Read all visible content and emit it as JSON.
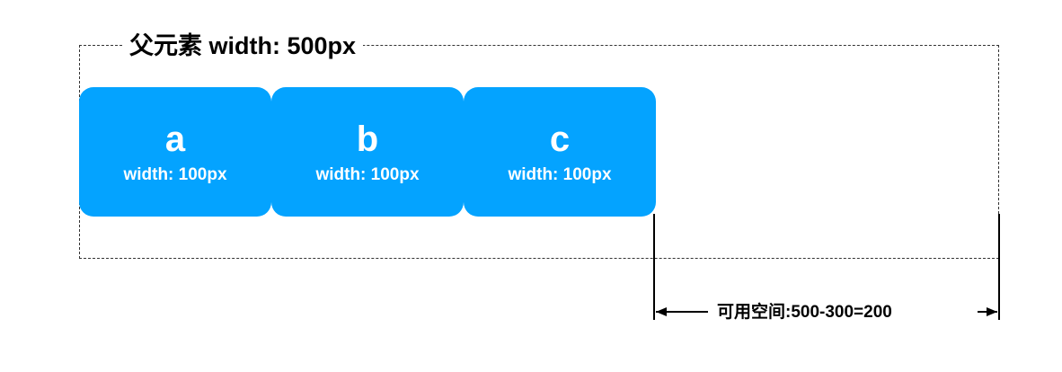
{
  "parent": {
    "title": "父元素 width: 500px",
    "border_color": "#333333"
  },
  "children": [
    {
      "name": "a",
      "width_label": "width: 100px"
    },
    {
      "name": "b",
      "width_label": "width: 100px"
    },
    {
      "name": "c",
      "width_label": "width: 100px"
    }
  ],
  "colors": {
    "child_fill": "#04a3ff",
    "child_text": "#ffffff",
    "line": "#000000"
  },
  "available_space": {
    "label": "可用空间:500-300=200"
  }
}
